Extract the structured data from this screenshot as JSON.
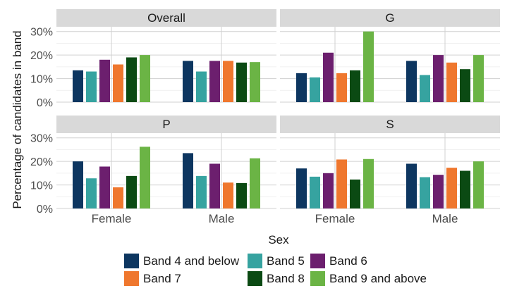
{
  "chart_data": {
    "type": "bar",
    "facets": [
      "Overall",
      "G",
      "P",
      "S"
    ],
    "categories": [
      "Female",
      "Male"
    ],
    "xlabel": "Sex",
    "ylabel": "Percentage of candidates in band",
    "ylim": [
      0,
      0.32
    ],
    "yticks": [
      "0%",
      "10%",
      "20%",
      "30%"
    ],
    "series_names": [
      "Band 4 and below",
      "Band 5",
      "Band 6",
      "Band 7",
      "Band 8",
      "Band 9 and above"
    ],
    "colors": [
      "#0d3660",
      "#36a3a0",
      "#6c1f6e",
      "#ef772e",
      "#0b4a13",
      "#6bb445"
    ],
    "panels": {
      "Overall": {
        "Female": [
          0.135,
          0.13,
          0.18,
          0.16,
          0.19,
          0.2
        ],
        "Male": [
          0.175,
          0.13,
          0.175,
          0.175,
          0.168,
          0.17
        ]
      },
      "G": {
        "Female": [
          0.123,
          0.105,
          0.21,
          0.123,
          0.135,
          0.3
        ],
        "Male": [
          0.175,
          0.115,
          0.2,
          0.168,
          0.14,
          0.2
        ]
      },
      "P": {
        "Female": [
          0.2,
          0.128,
          0.178,
          0.09,
          0.138,
          0.262
        ],
        "Male": [
          0.235,
          0.138,
          0.19,
          0.11,
          0.108,
          0.213
        ]
      },
      "S": {
        "Female": [
          0.17,
          0.135,
          0.15,
          0.208,
          0.123,
          0.21
        ],
        "Male": [
          0.19,
          0.133,
          0.143,
          0.173,
          0.16,
          0.2
        ]
      }
    },
    "grid": true,
    "legend_position": "bottom"
  }
}
